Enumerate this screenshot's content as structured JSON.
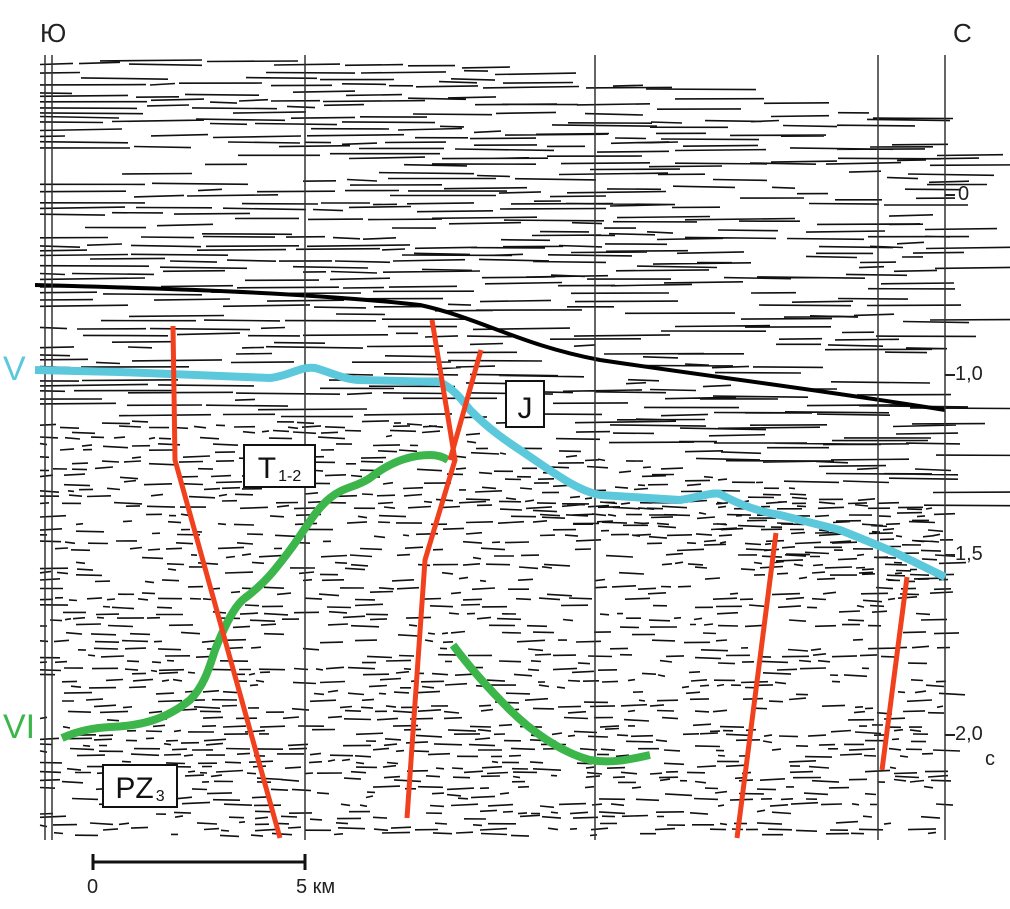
{
  "compass": {
    "left": "Ю",
    "right": "С"
  },
  "time_axis": {
    "ticks": [
      "0",
      "1,0",
      "1,5",
      "2,0"
    ],
    "unit": "с"
  },
  "scale_bar": {
    "start": "0",
    "end": "5 км"
  },
  "horizons": [
    {
      "label": "V",
      "color": "#5bc8dc"
    },
    {
      "label": "VI",
      "color": "#3cb54a"
    }
  ],
  "units": [
    {
      "main": "J",
      "sub": ""
    },
    {
      "main": "T",
      "sub": "1-2"
    },
    {
      "main": "PZ",
      "sub": "3"
    }
  ],
  "fault_color": "#f0401e"
}
